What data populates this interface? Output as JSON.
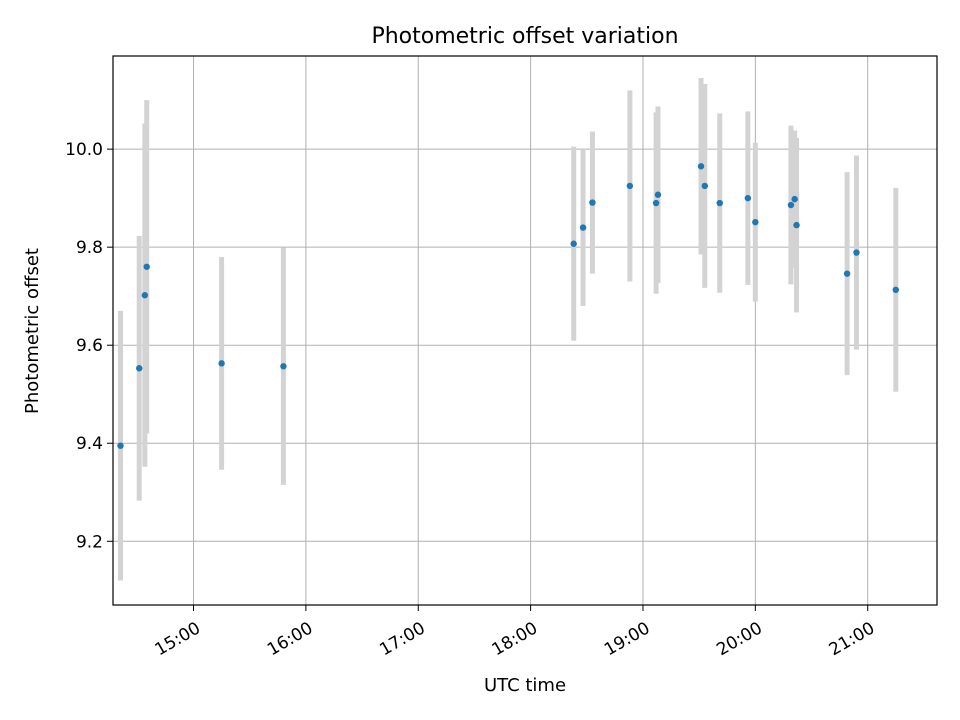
{
  "chart_data": {
    "type": "scatter",
    "title": "Photometric offset variation",
    "xlabel": "UTC time",
    "ylabel": "Photometric offset",
    "xlim": [
      "14:17",
      "21:37"
    ],
    "ylim": [
      9.07,
      10.19
    ],
    "grid": true,
    "x_ticks": [
      "15:00",
      "16:00",
      "17:00",
      "18:00",
      "19:00",
      "20:00",
      "21:00"
    ],
    "y_ticks": [
      "9.2",
      "9.4",
      "9.6",
      "9.8",
      "10.0"
    ],
    "colors": {
      "points": "#1f77b4",
      "errorbars": "#d3d3d3",
      "grid": "#b0b0b0"
    },
    "series": [
      {
        "points": [
          {
            "x": "14:21",
            "y": 9.395,
            "err": 0.275
          },
          {
            "x": "14:31",
            "y": 9.553,
            "err": 0.27
          },
          {
            "x": "14:34",
            "y": 9.702,
            "err": 0.35
          },
          {
            "x": "14:35",
            "y": 9.76,
            "err": 0.34
          },
          {
            "x": "15:15",
            "y": 9.563,
            "err": 0.217
          },
          {
            "x": "15:48",
            "y": 9.557,
            "err": 0.242
          },
          {
            "x": "18:23",
            "y": 9.807,
            "err": 0.198
          },
          {
            "x": "18:28",
            "y": 9.84,
            "err": 0.16
          },
          {
            "x": "18:33",
            "y": 9.891,
            "err": 0.145
          },
          {
            "x": "18:53",
            "y": 9.925,
            "err": 0.195
          },
          {
            "x": "19:07",
            "y": 9.89,
            "err": 0.185
          },
          {
            "x": "19:08",
            "y": 9.907,
            "err": 0.18
          },
          {
            "x": "19:31",
            "y": 9.965,
            "err": 0.18
          },
          {
            "x": "19:33",
            "y": 9.925,
            "err": 0.208
          },
          {
            "x": "19:41",
            "y": 9.89,
            "err": 0.183
          },
          {
            "x": "19:56",
            "y": 9.9,
            "err": 0.177
          },
          {
            "x": "20:00",
            "y": 9.851,
            "err": 0.162
          },
          {
            "x": "20:19",
            "y": 9.886,
            "err": 0.162
          },
          {
            "x": "20:21",
            "y": 9.898,
            "err": 0.14
          },
          {
            "x": "20:22",
            "y": 9.845,
            "err": 0.178
          },
          {
            "x": "20:49",
            "y": 9.746,
            "err": 0.207
          },
          {
            "x": "20:54",
            "y": 9.789,
            "err": 0.198
          },
          {
            "x": "21:15",
            "y": 9.713,
            "err": 0.208
          }
        ]
      }
    ]
  }
}
